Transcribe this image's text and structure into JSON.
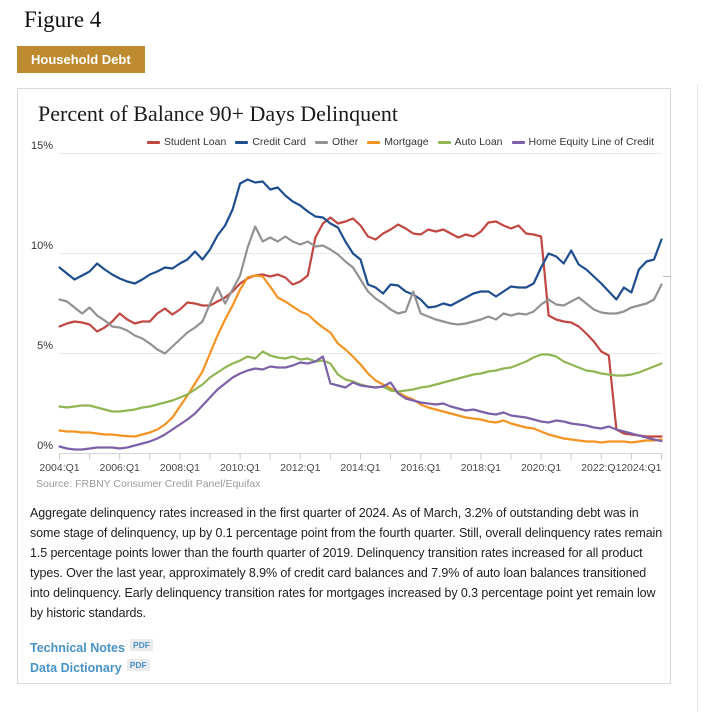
{
  "figure_label": "Figure 4",
  "tab": {
    "label": "Household Debt",
    "color": "#bd8a2f"
  },
  "chart": {
    "title": "Percent of Balance 90+ Days Delinquent",
    "source": "Source: FRBNY Consumer Credit Panel/Equifax"
  },
  "chart_data": {
    "type": "line",
    "x_start": "2004:Q1",
    "x_end": "2024:Q1",
    "x_frequency": "quarterly",
    "x_tick_labels": [
      "2004:Q1",
      "2006:Q1",
      "2008:Q1",
      "2010:Q1",
      "2012:Q1",
      "2014:Q1",
      "2016:Q1",
      "2018:Q1",
      "2020:Q1",
      "2022:Q1",
      "2024:Q1"
    ],
    "yticks": [
      "0%",
      "5%",
      "10%",
      "15%"
    ],
    "ylim": [
      0,
      15
    ],
    "grid": "horizontal",
    "legend_position": "top",
    "series": [
      {
        "name": "Student Loan",
        "color": "#c14742",
        "values": [
          6.35,
          6.5,
          6.6,
          6.55,
          6.45,
          6.1,
          6.3,
          6.6,
          7.0,
          6.7,
          6.5,
          6.6,
          6.6,
          7.0,
          7.25,
          6.95,
          7.2,
          7.55,
          7.5,
          7.4,
          7.4,
          7.6,
          7.8,
          8.1,
          8.5,
          8.75,
          8.9,
          8.95,
          8.85,
          8.95,
          8.8,
          8.45,
          8.6,
          8.9,
          10.8,
          11.5,
          11.8,
          11.5,
          11.6,
          11.75,
          11.4,
          10.85,
          10.7,
          11.0,
          11.2,
          11.45,
          11.25,
          11.0,
          10.95,
          11.2,
          11.1,
          11.2,
          11.0,
          10.8,
          10.95,
          10.85,
          11.1,
          11.55,
          11.6,
          11.4,
          11.25,
          11.4,
          11.0,
          10.95,
          10.85,
          6.9,
          6.7,
          6.6,
          6.55,
          6.35,
          6.0,
          5.6,
          5.1,
          4.9,
          1.2,
          1.0,
          0.95,
          0.9,
          0.85,
          0.85,
          0.85
        ]
      },
      {
        "name": "Credit Card",
        "color": "#1f4e8f",
        "values": [
          9.3,
          9.0,
          8.7,
          8.9,
          9.1,
          9.5,
          9.2,
          8.95,
          8.75,
          8.6,
          8.5,
          8.7,
          8.95,
          9.1,
          9.3,
          9.25,
          9.5,
          9.7,
          10.1,
          9.7,
          10.2,
          10.9,
          11.4,
          12.2,
          13.5,
          13.7,
          13.55,
          13.6,
          13.2,
          13.3,
          12.9,
          12.6,
          12.4,
          12.1,
          11.85,
          11.8,
          11.5,
          11.3,
          10.6,
          10.0,
          9.7,
          8.45,
          8.3,
          8.0,
          8.45,
          8.4,
          8.1,
          7.95,
          7.7,
          7.3,
          7.35,
          7.5,
          7.4,
          7.6,
          7.8,
          8.0,
          8.1,
          8.1,
          7.85,
          8.1,
          8.35,
          8.3,
          8.3,
          8.5,
          9.3,
          10.0,
          9.85,
          9.5,
          10.15,
          9.45,
          9.2,
          8.85,
          8.5,
          8.1,
          7.7,
          8.3,
          8.05,
          9.2,
          9.6,
          9.7,
          10.7
        ]
      },
      {
        "name": "Other",
        "color": "#929292",
        "values": [
          7.7,
          7.6,
          7.3,
          7.0,
          7.3,
          6.9,
          6.65,
          6.35,
          6.3,
          6.15,
          5.9,
          5.75,
          5.5,
          5.2,
          5.0,
          5.35,
          5.7,
          6.05,
          6.3,
          6.6,
          7.5,
          8.3,
          7.5,
          8.2,
          8.9,
          10.3,
          11.35,
          10.6,
          10.8,
          10.6,
          10.85,
          10.6,
          10.45,
          10.6,
          10.35,
          10.4,
          10.2,
          9.95,
          9.6,
          9.3,
          8.7,
          8.1,
          7.75,
          7.5,
          7.2,
          7.0,
          7.1,
          8.1,
          7.0,
          6.85,
          6.7,
          6.6,
          6.5,
          6.45,
          6.5,
          6.6,
          6.7,
          6.85,
          6.7,
          7.0,
          6.9,
          7.0,
          6.95,
          7.1,
          7.45,
          7.7,
          7.45,
          7.4,
          7.6,
          7.8,
          7.5,
          7.2,
          7.05,
          7.0,
          7.0,
          7.1,
          7.3,
          7.4,
          7.5,
          7.7,
          8.45
        ]
      },
      {
        "name": "Mortgage",
        "color": "#f39322",
        "values": [
          1.15,
          1.1,
          1.1,
          1.05,
          1.05,
          1.0,
          0.95,
          0.95,
          0.9,
          0.87,
          0.85,
          0.95,
          1.05,
          1.2,
          1.45,
          1.8,
          2.35,
          2.9,
          3.5,
          4.1,
          5.0,
          5.9,
          6.7,
          7.4,
          8.2,
          8.8,
          8.9,
          8.85,
          8.35,
          7.8,
          7.6,
          7.35,
          7.1,
          6.95,
          6.6,
          6.3,
          6.05,
          5.5,
          5.2,
          4.85,
          4.45,
          4.0,
          3.65,
          3.45,
          3.25,
          3.05,
          2.85,
          2.7,
          2.45,
          2.3,
          2.2,
          2.1,
          2.0,
          1.9,
          1.8,
          1.75,
          1.7,
          1.6,
          1.55,
          1.65,
          1.5,
          1.4,
          1.3,
          1.25,
          1.1,
          0.95,
          0.85,
          0.75,
          0.7,
          0.65,
          0.6,
          0.6,
          0.55,
          0.6,
          0.6,
          0.6,
          0.55,
          0.6,
          0.65,
          0.65,
          0.7
        ]
      },
      {
        "name": "Auto Loan",
        "color": "#92b554",
        "values": [
          2.35,
          2.3,
          2.35,
          2.4,
          2.4,
          2.3,
          2.2,
          2.1,
          2.1,
          2.15,
          2.2,
          2.3,
          2.35,
          2.45,
          2.55,
          2.65,
          2.8,
          2.95,
          3.2,
          3.45,
          3.8,
          4.05,
          4.3,
          4.5,
          4.65,
          4.85,
          4.75,
          5.1,
          4.9,
          4.8,
          4.75,
          4.85,
          4.7,
          4.75,
          4.6,
          4.65,
          4.5,
          3.95,
          3.7,
          3.6,
          3.45,
          3.35,
          3.3,
          3.35,
          3.15,
          3.1,
          3.15,
          3.2,
          3.3,
          3.35,
          3.45,
          3.55,
          3.65,
          3.75,
          3.85,
          3.95,
          4.0,
          4.1,
          4.15,
          4.25,
          4.3,
          4.45,
          4.6,
          4.8,
          4.95,
          4.95,
          4.85,
          4.6,
          4.45,
          4.3,
          4.15,
          4.1,
          4.0,
          3.95,
          3.9,
          3.9,
          3.95,
          4.05,
          4.2,
          4.35,
          4.5
        ]
      },
      {
        "name": "Home Equity Line of Credit",
        "color": "#7d61a8",
        "values": [
          0.35,
          0.25,
          0.2,
          0.2,
          0.25,
          0.3,
          0.3,
          0.3,
          0.25,
          0.3,
          0.4,
          0.5,
          0.6,
          0.75,
          0.95,
          1.2,
          1.45,
          1.7,
          2.0,
          2.4,
          2.8,
          3.2,
          3.5,
          3.8,
          4.0,
          4.15,
          4.25,
          4.2,
          4.35,
          4.3,
          4.3,
          4.4,
          4.55,
          4.5,
          4.6,
          4.85,
          3.5,
          3.4,
          3.3,
          3.55,
          3.4,
          3.35,
          3.3,
          3.35,
          3.55,
          3.0,
          2.75,
          2.65,
          2.55,
          2.5,
          2.45,
          2.5,
          2.35,
          2.25,
          2.15,
          2.2,
          2.1,
          2.0,
          1.95,
          2.05,
          1.9,
          1.85,
          1.8,
          1.7,
          1.6,
          1.55,
          1.65,
          1.6,
          1.5,
          1.45,
          1.4,
          1.3,
          1.25,
          1.35,
          1.2,
          1.1,
          1.0,
          0.9,
          0.8,
          0.7,
          0.62
        ]
      }
    ]
  },
  "commentary": "Aggregate delinquency rates increased in the first quarter of 2024. As of March, 3.2% of outstanding debt was in some stage of delinquency, up by 0.1 percentage point from the fourth quarter. Still, overall delinquency rates remain 1.5 percentage points lower than the fourth quarter of 2019. Delinquency transition rates increased for all product types. Over the last year, approximately 8.9% of credit card balances and 7.9% of auto loan balances transitioned into delinquency. Early delinquency transition rates for mortgages increased by 0.3 percentage point yet remain low by historic standards.",
  "links": [
    {
      "label": "Technical Notes",
      "badge": "PDF"
    },
    {
      "label": "Data Dictionary",
      "badge": "PDF"
    }
  ]
}
